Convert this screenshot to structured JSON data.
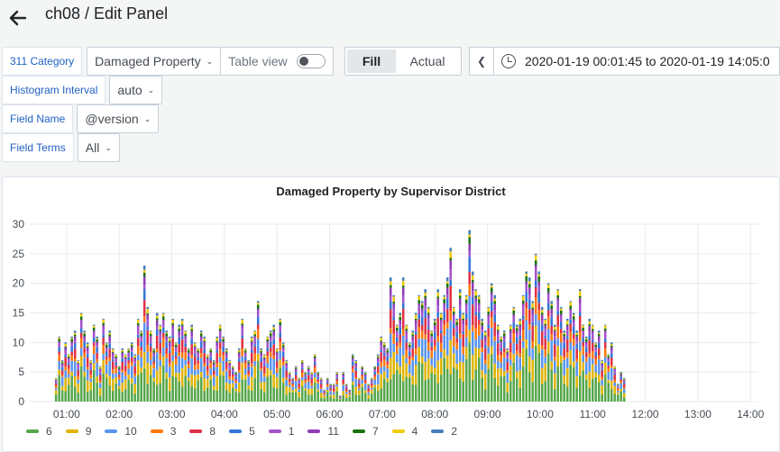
{
  "header": {
    "title": "ch08 / Edit Panel"
  },
  "variables": [
    {
      "label": "311 Category",
      "value": "Damaged Property"
    },
    {
      "label": "Histogram Interval",
      "value": "auto"
    },
    {
      "label": "Field Name",
      "value": "@version"
    },
    {
      "label": "Field Terms",
      "value": "All"
    }
  ],
  "toolbar": {
    "table_view_label": "Table view",
    "table_view_enabled": false,
    "fill_label": "Fill",
    "actual_label": "Actual",
    "selected": "Fill"
  },
  "time_range": {
    "text": "2020-01-19 00:01:45 to 2020-01-19 14:05:0"
  },
  "colors": {
    "accent": "#1f60c4",
    "background": "#f4f5f5"
  },
  "icons": {
    "back": "arrow-left-icon",
    "time_prev": "chevron-left-icon",
    "time_range": "clock-icon",
    "select": "chevron-down-icon"
  },
  "chart_data": {
    "type": "bar",
    "stacked": true,
    "title": "Damaged Property by Supervisor District",
    "xlabel": "",
    "ylabel": "",
    "ylim": [
      0,
      30
    ],
    "yticks": [
      0,
      5,
      10,
      15,
      20,
      25,
      30
    ],
    "xticks": [
      "01:00",
      "02:00",
      "03:00",
      "04:00",
      "05:00",
      "06:00",
      "07:00",
      "08:00",
      "09:00",
      "10:00",
      "11:00",
      "12:00",
      "13:00",
      "14:00"
    ],
    "x_unit": "hours",
    "xlim": [
      0.3,
      14.15
    ],
    "grid": true,
    "legend_position": "bottom",
    "bar_start": 0.8,
    "bar_step": 0.06,
    "series": [
      {
        "name": "6",
        "color": "#56a64b"
      },
      {
        "name": "9",
        "color": "#e0b400"
      },
      {
        "name": "10",
        "color": "#5794f2"
      },
      {
        "name": "3",
        "color": "#ff780a"
      },
      {
        "name": "8",
        "color": "#e02f44"
      },
      {
        "name": "5",
        "color": "#3274d9"
      },
      {
        "name": "1",
        "color": "#a352cc"
      },
      {
        "name": "11",
        "color": "#8f3bb8"
      },
      {
        "name": "7",
        "color": "#19730e"
      },
      {
        "name": "4",
        "color": "#f2cc0c"
      },
      {
        "name": "2",
        "color": "#447ebc"
      }
    ],
    "totals": [
      4,
      11,
      7,
      10,
      8,
      11,
      12,
      7,
      15,
      12,
      10,
      7,
      13,
      11,
      6,
      14,
      10,
      12,
      9,
      8,
      6,
      9,
      8,
      9,
      10,
      8,
      14,
      12,
      23,
      16,
      12,
      9,
      15,
      13,
      15,
      12,
      11,
      14,
      10,
      13,
      14,
      12,
      9,
      13,
      10,
      9,
      12,
      11,
      8,
      9,
      7,
      11,
      13,
      11,
      9,
      7,
      6,
      5,
      9,
      14,
      9,
      7,
      11,
      12,
      17,
      9,
      8,
      11,
      12,
      13,
      9,
      14,
      10,
      7,
      5,
      4,
      6,
      4,
      7,
      5,
      6,
      5,
      8,
      5,
      4,
      2,
      4,
      3,
      3,
      5,
      1,
      5,
      3,
      2,
      8,
      7,
      4,
      6,
      5,
      3,
      4,
      6,
      8,
      11,
      10,
      9,
      21,
      18,
      13,
      15,
      21,
      13,
      10,
      12,
      15,
      18,
      17,
      19,
      16,
      12,
      14,
      19,
      15,
      18,
      21,
      26,
      16,
      14,
      19,
      15,
      18,
      29,
      22,
      19,
      18,
      14,
      12,
      16,
      20,
      18,
      13,
      11,
      12,
      9,
      13,
      16,
      13,
      14,
      18,
      22,
      21,
      17,
      25,
      22,
      16,
      14,
      20,
      17,
      13,
      19,
      16,
      12,
      14,
      17,
      15,
      12,
      19,
      13,
      11,
      14,
      13,
      10,
      12,
      7,
      13,
      8,
      10,
      6,
      3,
      5,
      4
    ]
  }
}
